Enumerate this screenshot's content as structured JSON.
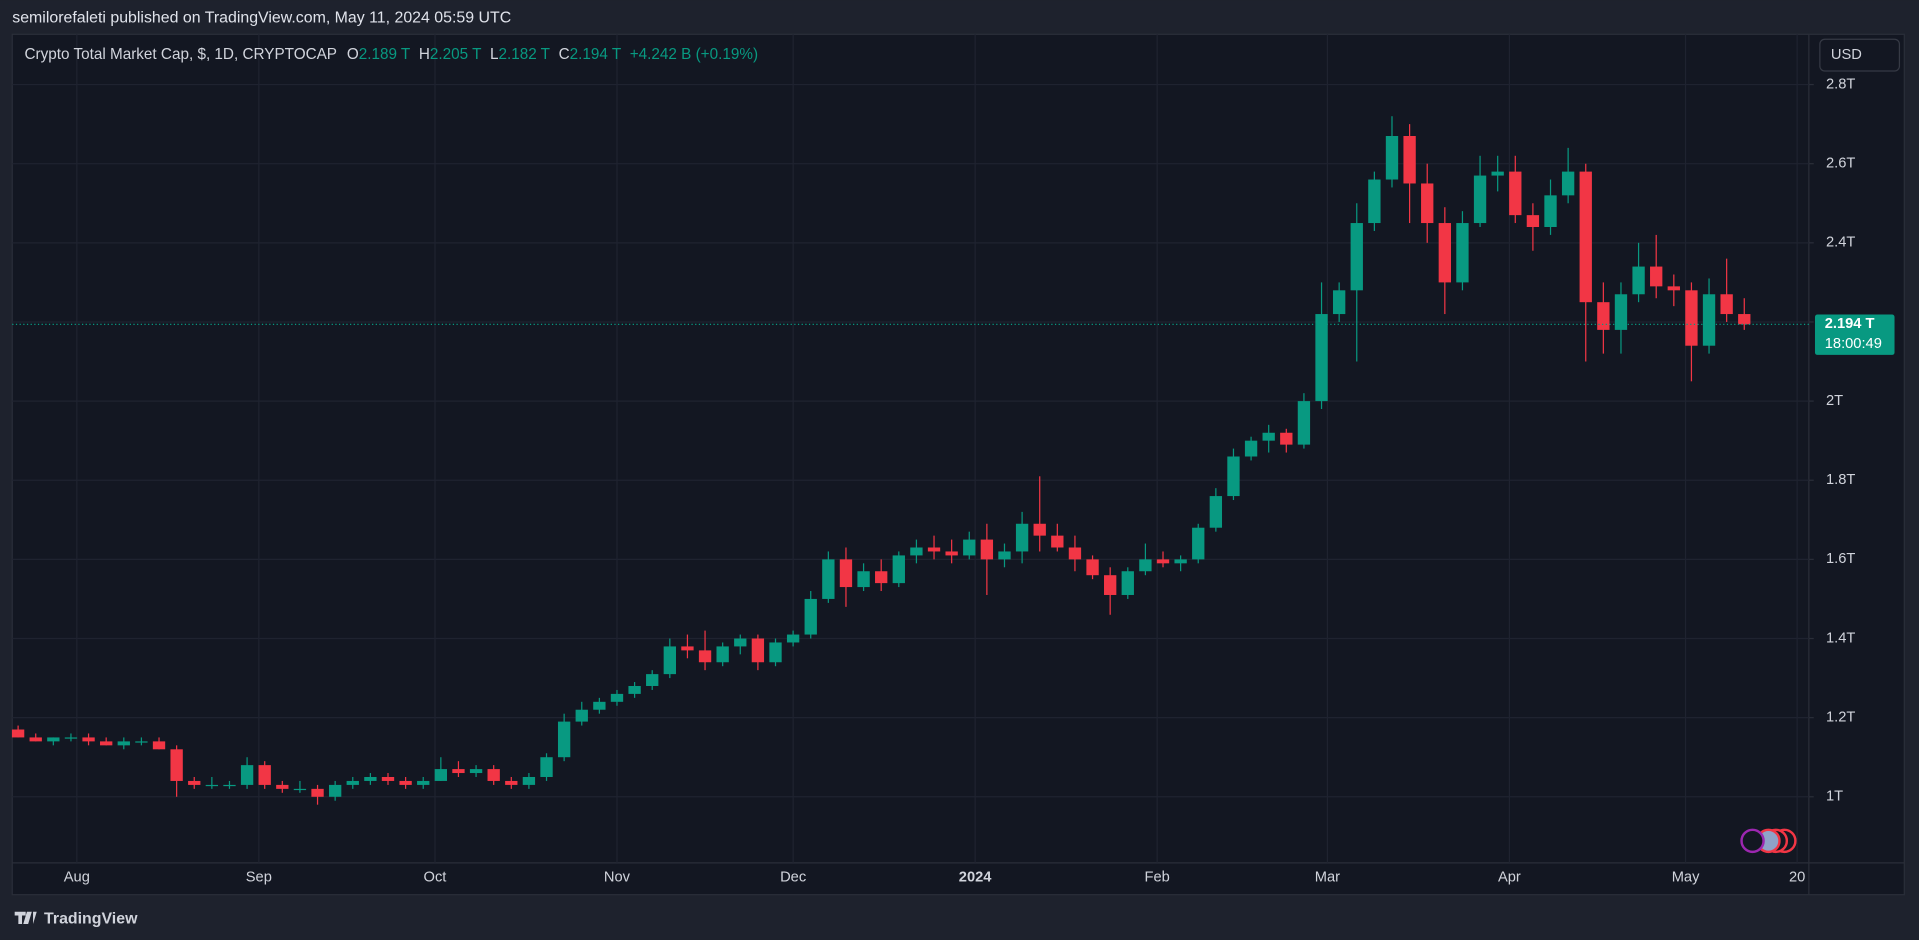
{
  "header": {
    "publisher": "semilorefaleti published on TradingView.com, May 11, 2024 05:59 UTC",
    "currency": "USD",
    "brand": "TradingView"
  },
  "chart_data": {
    "type": "candlestick",
    "title": "Crypto Total Market Cap, $, 1D, CRYPTOCAP",
    "ohlc_legend": [
      {
        "label": "O",
        "value": "2.189 T"
      },
      {
        "label": "H",
        "value": "2.205 T"
      },
      {
        "label": "L",
        "value": "2.182 T"
      },
      {
        "label": "C",
        "value": "2.194 T"
      }
    ],
    "change": "+4.242 B (+0.19%)",
    "up_color": "#089981",
    "down_color": "#f23645",
    "grid": true,
    "last_price": {
      "value": 2.194,
      "label": "2.194 T",
      "countdown": "18:00:49"
    },
    "xlim": [
      0,
      306
    ],
    "ylim": [
      0.833,
      2.927
    ],
    "xticks": [
      {
        "value": 11,
        "label": "Aug"
      },
      {
        "value": 42,
        "label": "Sep"
      },
      {
        "value": 72,
        "label": "Oct"
      },
      {
        "value": 103,
        "label": "Nov"
      },
      {
        "value": 133,
        "label": "Dec"
      },
      {
        "value": 164,
        "label": "2024"
      },
      {
        "value": 195,
        "label": "Feb"
      },
      {
        "value": 224,
        "label": "Mar"
      },
      {
        "value": 255,
        "label": "Apr"
      },
      {
        "value": 285,
        "label": "May"
      },
      {
        "value": 304,
        "label": "20"
      }
    ],
    "yticks": [
      {
        "value": 1,
        "label": "1T"
      },
      {
        "value": 1.2,
        "label": "1.2T"
      },
      {
        "value": 1.4,
        "label": "1.4T"
      },
      {
        "value": 1.6,
        "label": "1.6T"
      },
      {
        "value": 1.8,
        "label": "1.8T"
      },
      {
        "value": 2,
        "label": "2T"
      },
      {
        "value": 2.2,
        "label": "2.2T"
      },
      {
        "value": 2.4,
        "label": "2.4T"
      },
      {
        "value": 2.6,
        "label": "2.6T"
      },
      {
        "value": 2.8,
        "label": "2.8T"
      }
    ],
    "x": [
      1,
      4,
      7,
      10,
      13,
      16,
      19,
      22,
      25,
      28,
      31,
      34,
      37,
      40,
      43,
      46,
      49,
      52,
      55,
      58,
      61,
      64,
      67,
      70,
      73,
      76,
      79,
      82,
      85,
      88,
      91,
      94,
      97,
      100,
      103,
      106,
      109,
      112,
      115,
      118,
      121,
      124,
      127,
      130,
      133,
      136,
      139,
      142,
      145,
      148,
      151,
      154,
      157,
      160,
      163,
      166,
      169,
      172,
      175,
      178,
      181,
      184,
      187,
      190,
      193,
      196,
      199,
      202,
      205,
      208,
      211,
      214,
      217,
      220,
      223,
      226,
      229,
      232,
      235,
      238,
      241,
      244,
      247,
      250,
      253,
      256,
      259,
      262,
      265,
      268,
      271,
      274,
      277,
      280,
      283,
      286,
      289,
      292,
      295
    ],
    "values": [
      [
        1.17,
        1.18,
        1.15,
        1.15
      ],
      [
        1.15,
        1.16,
        1.14,
        1.14
      ],
      [
        1.14,
        1.15,
        1.13,
        1.15
      ],
      [
        1.15,
        1.16,
        1.14,
        1.15
      ],
      [
        1.15,
        1.16,
        1.13,
        1.14
      ],
      [
        1.14,
        1.15,
        1.13,
        1.13
      ],
      [
        1.13,
        1.15,
        1.12,
        1.14
      ],
      [
        1.14,
        1.15,
        1.13,
        1.14
      ],
      [
        1.14,
        1.15,
        1.12,
        1.12
      ],
      [
        1.12,
        1.13,
        1.0,
        1.04
      ],
      [
        1.04,
        1.05,
        1.02,
        1.03
      ],
      [
        1.03,
        1.05,
        1.02,
        1.03
      ],
      [
        1.03,
        1.04,
        1.02,
        1.03
      ],
      [
        1.03,
        1.1,
        1.02,
        1.08
      ],
      [
        1.08,
        1.09,
        1.02,
        1.03
      ],
      [
        1.03,
        1.04,
        1.01,
        1.02
      ],
      [
        1.02,
        1.04,
        1.01,
        1.02
      ],
      [
        1.02,
        1.03,
        0.98,
        1.0
      ],
      [
        1.0,
        1.04,
        0.99,
        1.03
      ],
      [
        1.03,
        1.05,
        1.02,
        1.04
      ],
      [
        1.04,
        1.06,
        1.03,
        1.05
      ],
      [
        1.05,
        1.06,
        1.03,
        1.04
      ],
      [
        1.04,
        1.05,
        1.02,
        1.03
      ],
      [
        1.03,
        1.05,
        1.02,
        1.04
      ],
      [
        1.04,
        1.1,
        1.04,
        1.07
      ],
      [
        1.07,
        1.09,
        1.05,
        1.06
      ],
      [
        1.06,
        1.08,
        1.05,
        1.07
      ],
      [
        1.07,
        1.08,
        1.03,
        1.04
      ],
      [
        1.04,
        1.05,
        1.02,
        1.03
      ],
      [
        1.03,
        1.06,
        1.02,
        1.05
      ],
      [
        1.05,
        1.11,
        1.04,
        1.1
      ],
      [
        1.1,
        1.21,
        1.09,
        1.19
      ],
      [
        1.19,
        1.24,
        1.18,
        1.22
      ],
      [
        1.22,
        1.25,
        1.21,
        1.24
      ],
      [
        1.24,
        1.27,
        1.23,
        1.26
      ],
      [
        1.26,
        1.29,
        1.25,
        1.28
      ],
      [
        1.28,
        1.32,
        1.27,
        1.31
      ],
      [
        1.31,
        1.4,
        1.3,
        1.38
      ],
      [
        1.38,
        1.41,
        1.35,
        1.37
      ],
      [
        1.37,
        1.42,
        1.32,
        1.34
      ],
      [
        1.34,
        1.39,
        1.33,
        1.38
      ],
      [
        1.38,
        1.41,
        1.36,
        1.4
      ],
      [
        1.4,
        1.41,
        1.32,
        1.34
      ],
      [
        1.34,
        1.4,
        1.33,
        1.39
      ],
      [
        1.39,
        1.42,
        1.38,
        1.41
      ],
      [
        1.41,
        1.52,
        1.4,
        1.5
      ],
      [
        1.5,
        1.62,
        1.49,
        1.6
      ],
      [
        1.6,
        1.63,
        1.48,
        1.53
      ],
      [
        1.53,
        1.59,
        1.52,
        1.57
      ],
      [
        1.57,
        1.6,
        1.52,
        1.54
      ],
      [
        1.54,
        1.62,
        1.53,
        1.61
      ],
      [
        1.61,
        1.65,
        1.59,
        1.63
      ],
      [
        1.63,
        1.66,
        1.6,
        1.62
      ],
      [
        1.62,
        1.65,
        1.59,
        1.61
      ],
      [
        1.61,
        1.67,
        1.6,
        1.65
      ],
      [
        1.65,
        1.69,
        1.51,
        1.6
      ],
      [
        1.6,
        1.64,
        1.58,
        1.62
      ],
      [
        1.62,
        1.72,
        1.59,
        1.69
      ],
      [
        1.69,
        1.81,
        1.62,
        1.66
      ],
      [
        1.66,
        1.69,
        1.62,
        1.63
      ],
      [
        1.63,
        1.66,
        1.57,
        1.6
      ],
      [
        1.6,
        1.61,
        1.55,
        1.56
      ],
      [
        1.56,
        1.58,
        1.46,
        1.51
      ],
      [
        1.51,
        1.58,
        1.5,
        1.57
      ],
      [
        1.57,
        1.64,
        1.56,
        1.6
      ],
      [
        1.6,
        1.62,
        1.58,
        1.59
      ],
      [
        1.59,
        1.61,
        1.57,
        1.6
      ],
      [
        1.6,
        1.69,
        1.59,
        1.68
      ],
      [
        1.68,
        1.78,
        1.67,
        1.76
      ],
      [
        1.76,
        1.88,
        1.75,
        1.86
      ],
      [
        1.86,
        1.91,
        1.85,
        1.9
      ],
      [
        1.9,
        1.94,
        1.87,
        1.92
      ],
      [
        1.92,
        1.93,
        1.87,
        1.89
      ],
      [
        1.89,
        2.02,
        1.88,
        2.0
      ],
      [
        2.0,
        2.3,
        1.98,
        2.22
      ],
      [
        2.22,
        2.3,
        2.2,
        2.28
      ],
      [
        2.28,
        2.5,
        2.1,
        2.45
      ],
      [
        2.45,
        2.58,
        2.43,
        2.56
      ],
      [
        2.56,
        2.72,
        2.54,
        2.67
      ],
      [
        2.67,
        2.7,
        2.45,
        2.55
      ],
      [
        2.55,
        2.6,
        2.4,
        2.45
      ],
      [
        2.45,
        2.49,
        2.22,
        2.3
      ],
      [
        2.3,
        2.48,
        2.28,
        2.45
      ],
      [
        2.45,
        2.62,
        2.44,
        2.57
      ],
      [
        2.57,
        2.62,
        2.53,
        2.58
      ],
      [
        2.58,
        2.62,
        2.45,
        2.47
      ],
      [
        2.47,
        2.5,
        2.38,
        2.44
      ],
      [
        2.44,
        2.56,
        2.42,
        2.52
      ],
      [
        2.52,
        2.64,
        2.5,
        2.58
      ],
      [
        2.58,
        2.6,
        2.1,
        2.25
      ],
      [
        2.25,
        2.3,
        2.12,
        2.18
      ],
      [
        2.18,
        2.3,
        2.12,
        2.27
      ],
      [
        2.27,
        2.4,
        2.25,
        2.34
      ],
      [
        2.34,
        2.42,
        2.26,
        2.29
      ],
      [
        2.29,
        2.32,
        2.24,
        2.28
      ],
      [
        2.28,
        2.3,
        2.05,
        2.14
      ],
      [
        2.14,
        2.31,
        2.12,
        2.27
      ],
      [
        2.27,
        2.36,
        2.2,
        2.22
      ],
      [
        2.22,
        2.26,
        2.18,
        2.194
      ]
    ]
  }
}
